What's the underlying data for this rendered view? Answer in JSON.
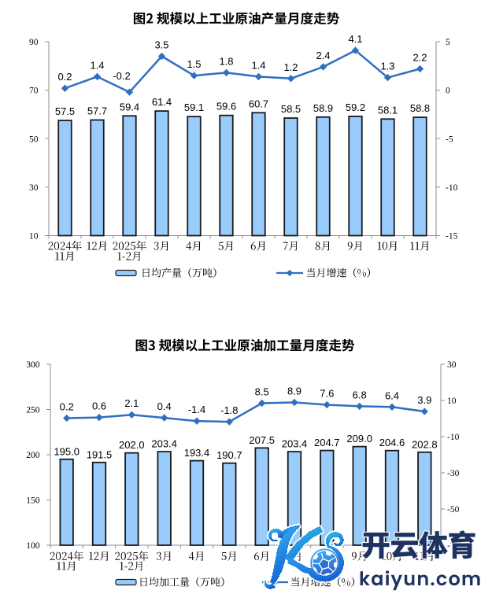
{
  "page": {
    "background": "#ffffff"
  },
  "chart_data": [
    {
      "type": "bar+line",
      "title": "图2 规模以上工业原油产量月度走势",
      "categories": [
        "2024年11月",
        "12月",
        "2025年1-2月",
        "3月",
        "4月",
        "5月",
        "6月",
        "7月",
        "8月",
        "9月",
        "10月",
        "11月"
      ],
      "categories_lines": [
        [
          "2024年",
          "11月"
        ],
        [
          "12月"
        ],
        [
          "2025年",
          "1-2月"
        ],
        [
          "3月"
        ],
        [
          "4月"
        ],
        [
          "5月"
        ],
        [
          "6月"
        ],
        [
          "7月"
        ],
        [
          "8月"
        ],
        [
          "9月"
        ],
        [
          "10月"
        ],
        [
          "11月"
        ]
      ],
      "series": [
        {
          "name": "日均产量（万吨）",
          "type": "bar",
          "axis": "left",
          "values": [
            57.5,
            57.7,
            59.4,
            61.4,
            59.1,
            59.6,
            60.7,
            58.5,
            58.9,
            59.2,
            58.1,
            58.8
          ]
        },
        {
          "name": "当月增速（%）",
          "type": "line",
          "axis": "right",
          "values": [
            0.2,
            1.4,
            -0.2,
            3.5,
            1.5,
            1.8,
            1.4,
            1.2,
            2.4,
            4.1,
            1.3,
            2.2
          ]
        }
      ],
      "left_axis": {
        "min": 10,
        "max": 90,
        "ticks": [
          10,
          30,
          50,
          70,
          90
        ]
      },
      "right_axis": {
        "min": -15,
        "max": 5,
        "ticks": [
          -15,
          -10,
          -5,
          0,
          5
        ]
      },
      "legend_position": "bottom",
      "gridlines": false
    },
    {
      "type": "bar+line",
      "title": "图3 规模以上工业原油加工量月度走势",
      "categories": [
        "2024年11月",
        "12月",
        "2025年1-2月",
        "3月",
        "4月",
        "5月",
        "6月",
        "7月",
        "8月",
        "9月",
        "10月",
        "11月"
      ],
      "categories_lines": [
        [
          "2024年",
          "11月"
        ],
        [
          "12月"
        ],
        [
          "2025年",
          "1-2月"
        ],
        [
          "3月"
        ],
        [
          "4月"
        ],
        [
          "5月"
        ],
        [
          "6月"
        ],
        [
          "7月"
        ],
        [
          "8月"
        ],
        [
          "9月"
        ],
        [
          "10月"
        ],
        [
          "11月"
        ]
      ],
      "series": [
        {
          "name": "日均加工量（万吨）",
          "type": "bar",
          "axis": "left",
          "values": [
            195.0,
            191.5,
            202.0,
            203.4,
            193.4,
            190.7,
            207.5,
            203.4,
            204.7,
            209.0,
            204.6,
            202.8
          ]
        },
        {
          "name": "当月增速（%）",
          "type": "line",
          "axis": "right",
          "values": [
            0.2,
            0.6,
            2.1,
            0.4,
            -1.4,
            -1.8,
            8.5,
            8.9,
            7.6,
            6.8,
            6.4,
            3.9
          ]
        }
      ],
      "left_axis": {
        "min": 100,
        "max": 300,
        "ticks": [
          100,
          150,
          200,
          250,
          300
        ]
      },
      "right_axis": {
        "min": -70,
        "max": 30,
        "ticks": [
          -70,
          -50,
          -30,
          -10,
          10,
          30
        ]
      },
      "legend_position": "bottom",
      "gridlines": false
    }
  ],
  "watermark": {
    "brand_text": "开云体育",
    "brand_domain": "kaiyun.com",
    "logo": "kaiyun-k-soccer-ball-logo",
    "colors": {
      "navy": "#1e3260",
      "teal": "#3fd3da",
      "blue": "#2285e2",
      "deep_blue": "#1257c8"
    }
  },
  "style": {
    "bar_fill": "#9accfb",
    "bar_stroke": "#17191e",
    "line_color": "#2f6fc1",
    "axis_color": "#8f8f8f",
    "text_color": "#000000"
  }
}
